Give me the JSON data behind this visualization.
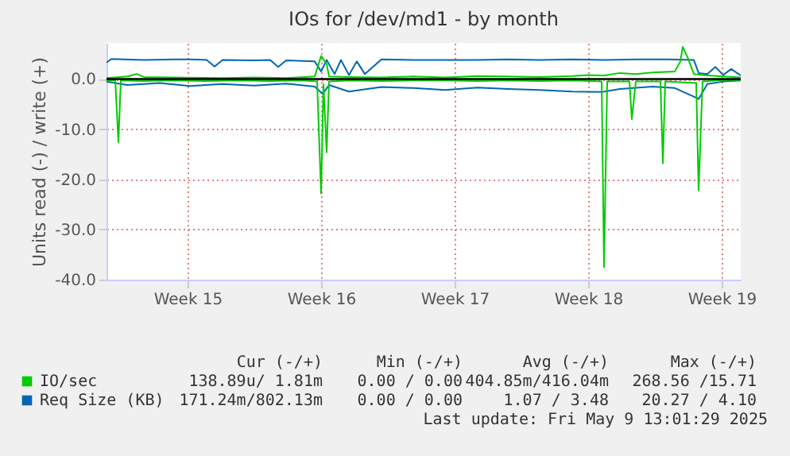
{
  "chart_data": {
    "type": "line",
    "title": "IOs for /dev/md1 - by month",
    "ylabel": "Units read (-) / write (+)",
    "xlim": [
      "2025-04-06T06:00",
      "2025-05-09T12:00"
    ],
    "ylim": [
      -40,
      7.2
    ],
    "xticks": [
      {
        "value": "2025-04-10T12:00",
        "label": "Week 15"
      },
      {
        "value": "2025-04-17T12:00",
        "label": "Week 16"
      },
      {
        "value": "2025-04-24T12:00",
        "label": "Week 17"
      },
      {
        "value": "2025-05-01T12:00",
        "label": "Week 18"
      },
      {
        "value": "2025-05-08T12:00",
        "label": "Week 19"
      }
    ],
    "yticks": [
      {
        "value": -40,
        "label": "-40.0"
      },
      {
        "value": -30,
        "label": "-30.0"
      },
      {
        "value": -20,
        "label": "-20.0"
      },
      {
        "value": -10,
        "label": "-10.0"
      },
      {
        "value": 0,
        "label": "0.0"
      }
    ],
    "grid": true,
    "legend": "bottom",
    "line_style": "solid",
    "marker": "none",
    "ref_lines": [
      {
        "axis": "y",
        "value": 0,
        "color": "#000000"
      }
    ],
    "series": [
      {
        "color": "#0066b3",
        "x": [
          "2025-04-06T06:00",
          "2025-04-07T08:00",
          "2025-04-09T01:00",
          "2025-04-10T15:00",
          "2025-04-12T08:00",
          "2025-04-14T00:00",
          "2025-04-15T16:00",
          "2025-04-17T04:00",
          "2025-04-17T14:00",
          "2025-04-17T22:00",
          "2025-04-18T23:00",
          "2025-04-20T16:00",
          "2025-04-22T08:00",
          "2025-04-24T00:00",
          "2025-04-25T17:00",
          "2025-04-27T07:00",
          "2025-04-28T23:00",
          "2025-04-30T16:00",
          "2025-05-02T05:00",
          "2025-05-03T04:00",
          "2025-05-04T21:00",
          "2025-05-06T01:00",
          "2025-05-07T01:00",
          "2025-05-07T07:00",
          "2025-05-07T18:00",
          "2025-05-08T14:00",
          "2025-05-09T12:00"
        ],
        "values": [
          -0.5,
          -1.2,
          -0.8,
          -1.4,
          -1.0,
          -1.3,
          -0.9,
          -1.5,
          -3.0,
          -1.2,
          -2.5,
          -1.6,
          -1.8,
          -2.2,
          -1.7,
          -2.0,
          -2.2,
          -2.5,
          -2.6,
          -2.0,
          -1.5,
          -1.8,
          -3.5,
          -4.0,
          -1.0,
          -0.5,
          -0.3
        ]
      },
      {
        "name": "Req Size (KB)",
        "color": "#0066b3",
        "x": [
          "2025-04-06T06:00",
          "2025-04-06T12:00",
          "2025-04-08T05:00",
          "2025-04-09T19:00",
          "2025-04-10T15:00",
          "2025-04-11T12:00",
          "2025-04-11T22:00",
          "2025-04-12T08:00",
          "2025-04-14T00:00",
          "2025-04-14T20:00",
          "2025-04-15T06:00",
          "2025-04-15T16:00",
          "2025-04-17T04:00",
          "2025-04-17T12:00",
          "2025-04-17T19:00",
          "2025-04-18T05:00",
          "2025-04-18T13:00",
          "2025-04-18T23:00",
          "2025-04-19T09:00",
          "2025-04-19T19:00",
          "2025-04-20T16:00",
          "2025-04-22T08:00",
          "2025-04-24T00:00",
          "2025-04-25T17:00",
          "2025-04-27T07:00",
          "2025-04-28T23:00",
          "2025-04-30T16:00",
          "2025-05-02T08:00",
          "2025-05-04T00:00",
          "2025-05-05T17:00",
          "2025-05-07T01:00",
          "2025-05-07T07:00",
          "2025-05-07T18:00",
          "2025-05-08T04:00",
          "2025-05-08T14:00",
          "2025-05-09T00:00",
          "2025-05-09T12:00"
        ],
        "values": [
          3.3,
          4.0,
          3.8,
          3.9,
          3.9,
          3.8,
          2.5,
          3.8,
          3.7,
          3.8,
          2.4,
          3.7,
          3.5,
          1.5,
          3.8,
          1.0,
          3.8,
          0.8,
          3.5,
          1.0,
          3.9,
          3.8,
          3.8,
          3.8,
          3.9,
          3.8,
          3.9,
          3.8,
          3.9,
          3.9,
          3.8,
          1.2,
          1.0,
          2.4,
          0.8,
          2.0,
          0.7
        ]
      },
      {
        "color": "#00cc00",
        "x": [
          "2025-04-06T06:00",
          "2025-04-06T17:00",
          "2025-04-06T21:00",
          "2025-04-07T00:00",
          "2025-04-08T05:00",
          "2025-04-09T19:00",
          "2025-04-11T12:00",
          "2025-04-13T04:00",
          "2025-04-14T20:00",
          "2025-04-16T12:00",
          "2025-04-17T07:00",
          "2025-04-17T12:00",
          "2025-04-17T15:00",
          "2025-04-17T19:00",
          "2025-04-17T22:00",
          "2025-04-18T23:00",
          "2025-04-20T16:00",
          "2025-04-22T08:00",
          "2025-04-24T00:00",
          "2025-04-25T17:00",
          "2025-04-27T07:00",
          "2025-04-28T23:00",
          "2025-04-30T16:00",
          "2025-05-02T05:00",
          "2025-05-02T08:00",
          "2025-05-02T12:00",
          "2025-05-03T16:00",
          "2025-05-03T19:00",
          "2025-05-04T00:00",
          "2025-05-05T07:00",
          "2025-05-05T10:00",
          "2025-05-05T13:00",
          "2025-05-07T04:00",
          "2025-05-07T07:00",
          "2025-05-07T12:00",
          "2025-05-08T14:00",
          "2025-05-09T12:00"
        ],
        "values": [
          -0.3,
          -0.3,
          -12.6,
          -0.3,
          -0.4,
          -0.3,
          -0.4,
          -0.3,
          -0.4,
          -0.3,
          -0.5,
          -22.8,
          -1,
          -14.6,
          -0.5,
          -0.3,
          -0.4,
          -0.3,
          -0.3,
          -0.4,
          -0.3,
          -0.4,
          -0.3,
          -0.5,
          -37.5,
          -0.5,
          -0.5,
          -8.0,
          -0.5,
          -0.5,
          -16.8,
          -0.5,
          -0.8,
          -22.2,
          -0.5,
          -0.2,
          -0.2
        ]
      },
      {
        "name": "IO/sec",
        "color": "#00cc00",
        "x": [
          "2025-04-06T06:00",
          "2025-04-07T08:00",
          "2025-04-07T20:00",
          "2025-04-08T05:00",
          "2025-04-09T19:00",
          "2025-04-12T08:00",
          "2025-04-14T00:00",
          "2025-04-15T16:00",
          "2025-04-17T04:00",
          "2025-04-17T12:00",
          "2025-04-17T19:00",
          "2025-04-17T22:00",
          "2025-04-18T23:00",
          "2025-04-20T16:00",
          "2025-04-22T08:00",
          "2025-04-24T00:00",
          "2025-04-25T17:00",
          "2025-04-27T07:00",
          "2025-04-28T23:00",
          "2025-04-30T16:00",
          "2025-05-01T12:00",
          "2025-05-02T08:00",
          "2025-05-03T04:00",
          "2025-05-04T00:00",
          "2025-05-04T21:00",
          "2025-05-06T01:00",
          "2025-05-06T08:00",
          "2025-05-06T11:00",
          "2025-05-06T18:00",
          "2025-05-07T01:00",
          "2025-05-07T12:00",
          "2025-05-08T14:00",
          "2025-05-09T12:00"
        ],
        "values": [
          0.2,
          0.5,
          1.0,
          0.4,
          0.3,
          0.2,
          0.3,
          0.2,
          0.5,
          4.6,
          3.0,
          0.5,
          0.4,
          0.3,
          0.5,
          0.3,
          0.6,
          0.5,
          0.4,
          0.6,
          0.8,
          0.7,
          1.2,
          1.0,
          1.3,
          1.5,
          3.5,
          6.4,
          4.0,
          1.0,
          0.8,
          0.5,
          0.3
        ]
      }
    ],
    "annotations": [
      "Cur (-/+)",
      "Min (-/+)",
      "Avg (-/+)",
      "Max (-/+)",
      "138.89u/ 1.81m",
      "0.00 / 0.00",
      "404.85m/416.04m",
      "268.56 /15.71",
      "171.24m/802.13m",
      "0.00 / 0.00",
      "1.07 / 3.48",
      "20.27 / 4.10",
      "Last update: Fri May  9 13:01:29 2025"
    ]
  }
}
